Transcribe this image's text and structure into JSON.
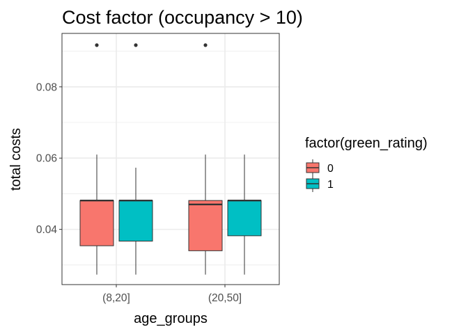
{
  "chart_data": {
    "type": "boxplot",
    "title": "Cost factor (occupancy > 10)",
    "xlabel": "age_groups",
    "ylabel": "total costs",
    "categories": [
      "(8,20]",
      "(20,50]"
    ],
    "ylim": [
      0.0245,
      0.095
    ],
    "y_ticks": [
      0.04,
      0.06,
      0.08
    ],
    "y_tick_labels": [
      "0.04",
      "0.06",
      "0.08"
    ],
    "grid": true,
    "legend": {
      "title": "factor(green_rating)",
      "position": "right",
      "entries": [
        {
          "label": "0",
          "color": "#F8766D"
        },
        {
          "label": "1",
          "color": "#00BFC4"
        }
      ]
    },
    "series": [
      {
        "group": "0",
        "color": "#F8766D",
        "boxes": [
          {
            "category": "(8,20]",
            "whisker_low": 0.0273,
            "q1": 0.0354,
            "median": 0.0481,
            "q3": 0.0481,
            "whisker_high": 0.061,
            "outliers": [
              0.0917
            ]
          },
          {
            "category": "(20,50]",
            "whisker_low": 0.0273,
            "q1": 0.034,
            "median": 0.047,
            "q3": 0.0481,
            "whisker_high": 0.061,
            "outliers": [
              0.0917
            ]
          }
        ]
      },
      {
        "group": "1",
        "color": "#00BFC4",
        "boxes": [
          {
            "category": "(8,20]",
            "whisker_low": 0.0273,
            "q1": 0.0367,
            "median": 0.0481,
            "q3": 0.0481,
            "whisker_high": 0.0573,
            "outliers": [
              0.0917
            ]
          },
          {
            "category": "(20,50]",
            "whisker_low": 0.0273,
            "q1": 0.0382,
            "median": 0.0481,
            "q3": 0.0481,
            "whisker_high": 0.061,
            "outliers": []
          }
        ]
      }
    ]
  }
}
